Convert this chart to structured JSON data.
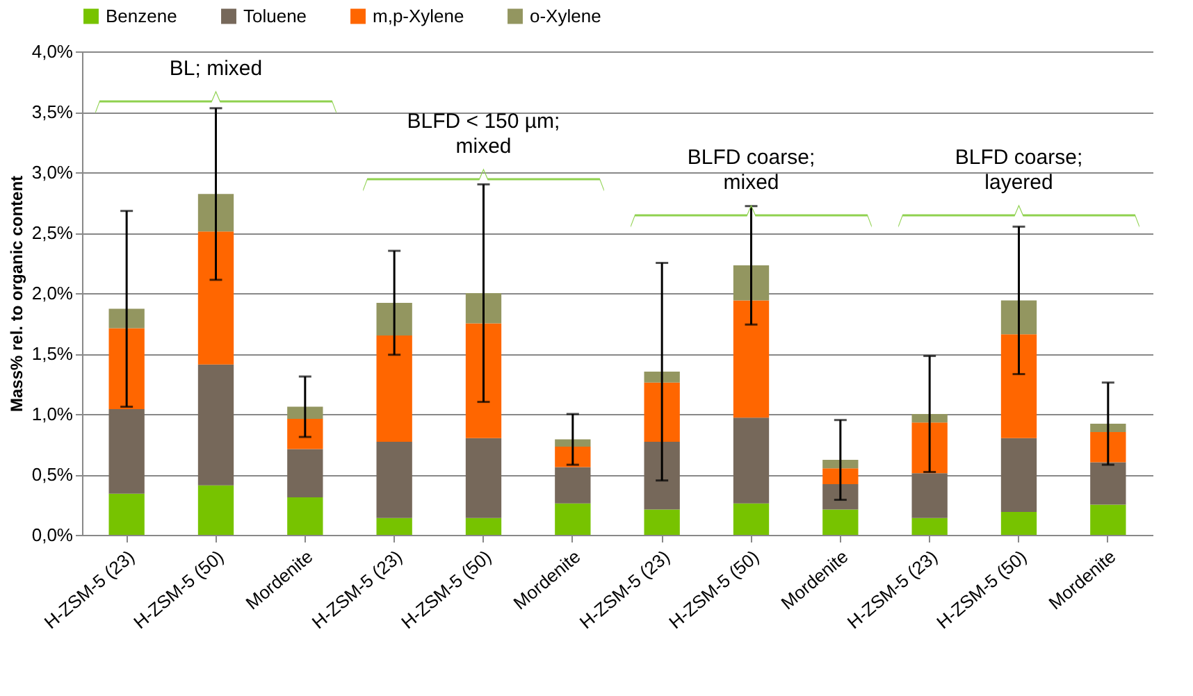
{
  "chart_data": {
    "type": "bar",
    "stacked": true,
    "ylabel": "Mass% rel. to organic content",
    "categories": [
      "H-ZSM-5 (23)",
      "H-ZSM-5 (50)",
      "Mordenite",
      "H-ZSM-5 (23)",
      "H-ZSM-5 (50)",
      "Mordenite",
      "H-ZSM-5 (23)",
      "H-ZSM-5 (50)",
      "Mordenite",
      "H-ZSM-5 (23)",
      "H-ZSM-5 (50)",
      "Mordenite"
    ],
    "series": [
      {
        "name": "Benzene",
        "color": "#77c300",
        "values": [
          0.34,
          0.41,
          0.31,
          0.14,
          0.14,
          0.26,
          0.21,
          0.26,
          0.21,
          0.14,
          0.19,
          0.25
        ]
      },
      {
        "name": "Toluene",
        "color": "#76685a",
        "values": [
          0.7,
          1.0,
          0.4,
          0.63,
          0.66,
          0.3,
          0.56,
          0.71,
          0.21,
          0.37,
          0.61,
          0.35
        ]
      },
      {
        "name": "m,p-Xylene",
        "color": "#ff6600",
        "values": [
          0.67,
          1.1,
          0.25,
          0.88,
          0.95,
          0.17,
          0.49,
          0.97,
          0.13,
          0.42,
          0.86,
          0.25
        ]
      },
      {
        "name": "o-Xylene",
        "color": "#939660",
        "values": [
          0.16,
          0.31,
          0.1,
          0.27,
          0.25,
          0.06,
          0.09,
          0.29,
          0.07,
          0.07,
          0.28,
          0.07
        ],
        "errors": [
          0.81,
          0.71,
          0.25,
          0.43,
          0.9,
          0.21,
          0.9,
          0.49,
          0.33,
          0.48,
          0.61,
          0.34
        ]
      }
    ],
    "ylim": [
      0,
      4
    ],
    "yticks": [
      {
        "value": 0,
        "label": "0,0%"
      },
      {
        "value": 0.5,
        "label": "0,5%"
      },
      {
        "value": 1,
        "label": "1,0%"
      },
      {
        "value": 1.5,
        "label": "1,5%"
      },
      {
        "value": 2,
        "label": "2,0%"
      },
      {
        "value": 2.5,
        "label": "2,5%"
      },
      {
        "value": 3,
        "label": "3,0%"
      },
      {
        "value": 3.5,
        "label": "3,5%"
      },
      {
        "value": 4,
        "label": "4,0%"
      }
    ],
    "grid": "y",
    "legend": "top",
    "annotations": [
      "BL; mixed",
      "BLFD < 150 µm;\nmixed",
      "BLFD coarse;\nmixed",
      "BLFD coarse;\nlayered"
    ]
  }
}
